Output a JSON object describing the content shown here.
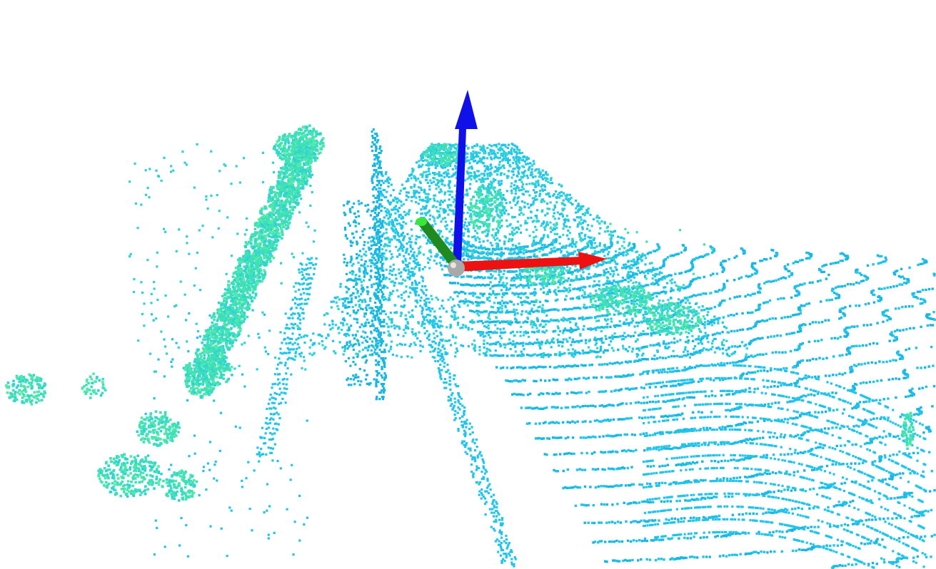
{
  "scene": {
    "background": "#ffffff",
    "point_colors": {
      "ground": "#22c4ec",
      "ground_alt": "#19b6e2",
      "vegetation": "#3fe0b8",
      "vegetation_alt": "#54eaa6",
      "mid": "#2fd2d6"
    },
    "axes": {
      "x_color": "#ee1111",
      "y_color": "#1f8a1f",
      "y_tip_color": "#39e639",
      "z_color": "#1010e8",
      "origin_color": "#a9a9a9",
      "icons": [
        "x-axis-arrow",
        "y-axis-arrow",
        "z-axis-arrow",
        "origin-sphere"
      ]
    }
  }
}
